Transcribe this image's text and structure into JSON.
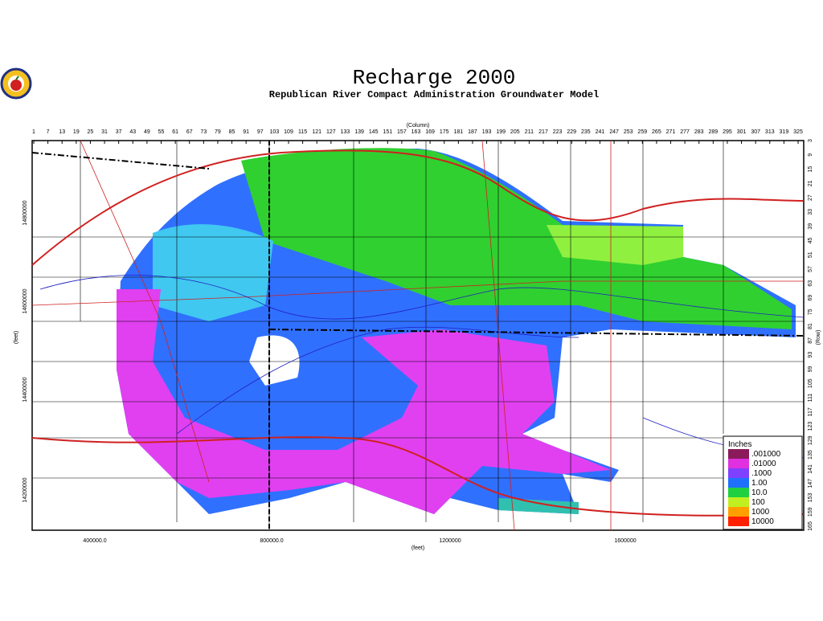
{
  "header": {
    "title": "Recharge 2000",
    "subtitle": "Republican River Compact Administration Groundwater Model"
  },
  "axes": {
    "column_label": "(Column)",
    "row_label": "(Row)",
    "x_label": "(feet)",
    "y_label": "(feet)",
    "column_ticks": [
      "1",
      "7",
      "13",
      "19",
      "25",
      "31",
      "37",
      "43",
      "49",
      "55",
      "61",
      "67",
      "73",
      "79",
      "85",
      "91",
      "97",
      "103",
      "109",
      "115",
      "121",
      "127",
      "133",
      "139",
      "145",
      "151",
      "157",
      "163",
      "169",
      "175",
      "181",
      "187",
      "193",
      "199",
      "205",
      "211",
      "217",
      "223",
      "229",
      "235",
      "241",
      "247",
      "253",
      "259",
      "265",
      "271",
      "277",
      "283",
      "289",
      "295",
      "301",
      "307",
      "313",
      "319",
      "325"
    ],
    "row_ticks": [
      "3",
      "9",
      "15",
      "21",
      "27",
      "33",
      "39",
      "45",
      "51",
      "57",
      "63",
      "69",
      "75",
      "81",
      "87",
      "93",
      "99",
      "105",
      "111",
      "117",
      "123",
      "129",
      "135",
      "141",
      "147",
      "153",
      "159",
      "165"
    ],
    "x_ticks": [
      "400000.0",
      "800000.0",
      "1200000",
      "1600000"
    ],
    "y_ticks": [
      "14800000",
      "14600000",
      "14400000",
      "14200000"
    ]
  },
  "legend": {
    "title": "Inches",
    "labels": [
      ".001000",
      ".01000",
      ".1000",
      "1.00",
      "10.0",
      "100",
      "1000",
      "10000"
    ]
  }
}
